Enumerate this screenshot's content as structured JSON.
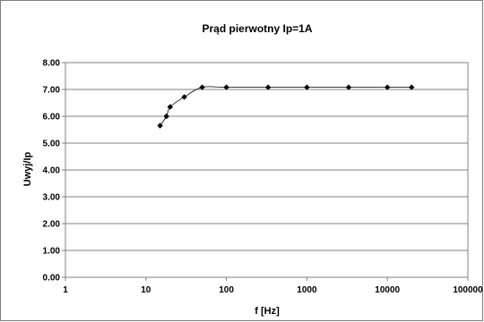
{
  "chart_data": {
    "type": "scatter",
    "title": "Prąd pierwotny Ip=1A",
    "xlabel": "f [Hz]",
    "ylabel": "Uwyj/Ip",
    "xscale": "log",
    "xlim": [
      1,
      100000
    ],
    "ylim": [
      0,
      8
    ],
    "grid": "horizontal",
    "legend": "none",
    "y_ticks": [
      "0.00",
      "1.00",
      "2.00",
      "3.00",
      "4.00",
      "5.00",
      "6.00",
      "7.00",
      "8.00"
    ],
    "x_ticks": [
      "1",
      "10",
      "100",
      "1000",
      "10000",
      "100000"
    ],
    "x_tick_values": [
      1,
      10,
      100,
      1000,
      10000,
      100000
    ],
    "series": [
      {
        "marker": "diamond",
        "line": "smooth",
        "color": "#000000",
        "x": [
          15,
          18,
          20,
          30,
          50,
          100,
          330,
          1000,
          3300,
          10000,
          20000
        ],
        "y": [
          5.65,
          6.0,
          6.35,
          6.72,
          7.08,
          7.08,
          7.08,
          7.08,
          7.08,
          7.08,
          7.08
        ]
      }
    ]
  }
}
